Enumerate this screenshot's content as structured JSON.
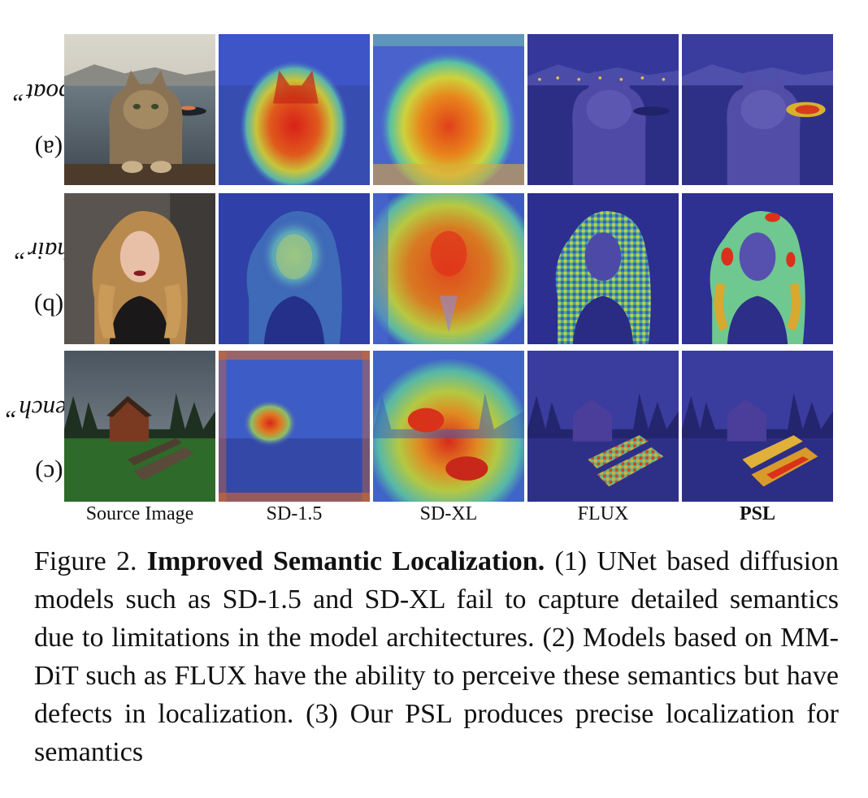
{
  "figure": {
    "rows": [
      {
        "tag": "(a)",
        "word": "“boat”"
      },
      {
        "tag": "(b)",
        "word": "“hair”"
      },
      {
        "tag": "(c)",
        "word": "“bench”"
      }
    ],
    "columns": [
      "Source Image",
      "SD-1.5",
      "SD-XL",
      "FLUX",
      "PSL"
    ]
  },
  "caption": {
    "number": "Figure 2.",
    "title": "Improved Semantic Localization.",
    "body": "(1) UNet based diffusion models such as SD-1.5 and SD-XL fail to capture detailed semantics due to limitations in the model architectures. (2) Models based on MM-DiT such as FLUX have the ability to perceive these semantics but have defects in localization. (3) Our PSL produces precise localization for semantics"
  }
}
